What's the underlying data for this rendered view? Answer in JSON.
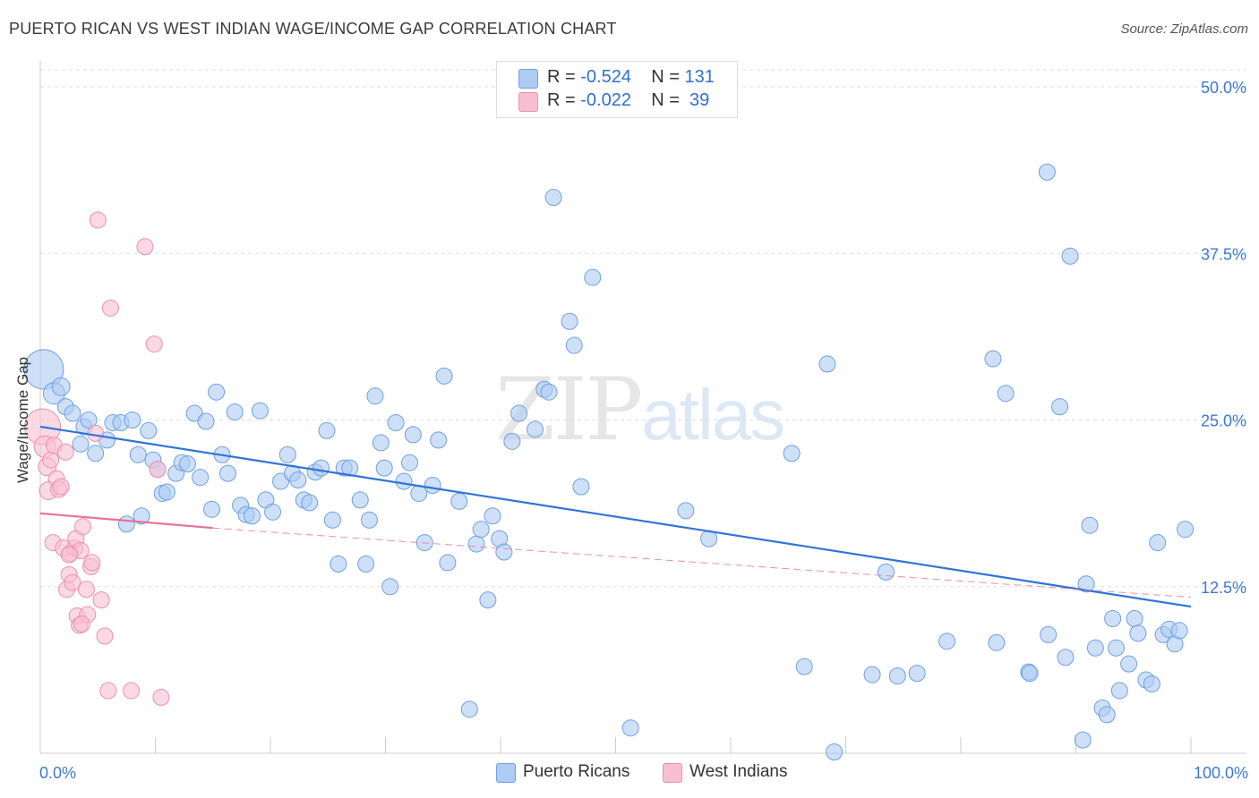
{
  "title": "PUERTO RICAN VS WEST INDIAN WAGE/INCOME GAP CORRELATION CHART",
  "source": "Source: ZipAtlas.com",
  "watermark": {
    "zip": "ZIP",
    "atlas": "atlas"
  },
  "colors": {
    "blue_fill": "#aecbf3",
    "blue_stroke": "#6f9fe0",
    "blue_line": "#2f74d6",
    "pink_fill": "#f8bfd2",
    "pink_stroke": "#ec8fae",
    "pink_line": "#e8719a",
    "grid": "#dddddd",
    "axis_label": "#3b78cf"
  },
  "legend_top": [
    {
      "r_label": "R = ",
      "r_value": "-0.524",
      "n_label": "N = ",
      "n_value": "131",
      "series": "Puerto Ricans"
    },
    {
      "r_label": "R = ",
      "r_value": "-0.022",
      "n_label": "N = ",
      "n_value": " 39",
      "series": "West Indians"
    }
  ],
  "legend_bottom": [
    "Puerto Ricans",
    "West Indians"
  ],
  "chart_data": {
    "type": "scatter",
    "title": "PUERTO RICAN VS WEST INDIAN WAGE/INCOME GAP CORRELATION CHART",
    "xlabel": "",
    "ylabel": "Wage/Income Gap",
    "xlim": [
      0,
      100
    ],
    "ylim": [
      0,
      50
    ],
    "x_tick_labels": [
      "0.0%",
      "100.0%"
    ],
    "y_ticks": [
      12.5,
      25.0,
      37.5,
      50.0
    ],
    "y_tick_labels": [
      "12.5%",
      "25.0%",
      "37.5%",
      "50.0%"
    ],
    "grid": true,
    "legend_position": "top-center",
    "series": [
      {
        "name": "Puerto Ricans",
        "R": -0.524,
        "N": 131,
        "trend": {
          "x": [
            0,
            100
          ],
          "y": [
            24.5,
            11.0
          ],
          "style": "solid"
        },
        "points": [
          [
            0.3,
            28.8,
            22
          ],
          [
            1.2,
            27.0,
            12
          ],
          [
            1.8,
            27.5,
            10
          ],
          [
            2.2,
            26.0,
            9
          ],
          [
            2.8,
            25.5,
            9
          ],
          [
            3.5,
            23.2,
            9
          ],
          [
            3.8,
            24.5,
            9
          ],
          [
            4.2,
            25.0,
            9
          ],
          [
            4.8,
            22.5,
            9
          ],
          [
            5.8,
            23.5,
            9
          ],
          [
            6.3,
            24.8,
            9
          ],
          [
            7.0,
            24.8,
            9
          ],
          [
            7.5,
            17.2,
            9
          ],
          [
            8.0,
            25.0,
            9
          ],
          [
            8.5,
            22.4,
            9
          ],
          [
            8.8,
            17.8,
            9
          ],
          [
            9.4,
            24.2,
            9
          ],
          [
            9.8,
            22.0,
            9
          ],
          [
            10.2,
            21.3,
            9
          ],
          [
            10.6,
            19.5,
            9
          ],
          [
            11.0,
            19.6,
            9
          ],
          [
            11.8,
            21.0,
            9
          ],
          [
            12.3,
            21.8,
            9
          ],
          [
            12.8,
            21.7,
            9
          ],
          [
            13.4,
            25.5,
            9
          ],
          [
            13.9,
            20.7,
            9
          ],
          [
            14.4,
            24.9,
            9
          ],
          [
            14.9,
            18.3,
            9
          ],
          [
            15.3,
            27.1,
            9
          ],
          [
            15.8,
            22.4,
            9
          ],
          [
            16.3,
            21.0,
            9
          ],
          [
            16.9,
            25.6,
            9
          ],
          [
            17.4,
            18.6,
            9
          ],
          [
            17.9,
            17.9,
            9
          ],
          [
            18.4,
            17.8,
            9
          ],
          [
            19.1,
            25.7,
            9
          ],
          [
            19.6,
            19.0,
            9
          ],
          [
            20.2,
            18.1,
            9
          ],
          [
            20.9,
            20.4,
            9
          ],
          [
            21.5,
            22.4,
            9
          ],
          [
            21.9,
            21.0,
            9
          ],
          [
            22.4,
            20.5,
            9
          ],
          [
            22.9,
            19.0,
            9
          ],
          [
            23.4,
            18.8,
            9
          ],
          [
            23.9,
            21.1,
            9
          ],
          [
            24.4,
            21.4,
            9
          ],
          [
            24.9,
            24.2,
            9
          ],
          [
            25.4,
            17.5,
            9
          ],
          [
            25.9,
            14.2,
            9
          ],
          [
            26.4,
            21.4,
            9
          ],
          [
            26.9,
            21.4,
            9
          ],
          [
            27.8,
            19.0,
            9
          ],
          [
            28.3,
            14.2,
            9
          ],
          [
            28.6,
            17.5,
            9
          ],
          [
            29.1,
            26.8,
            9
          ],
          [
            29.6,
            23.3,
            9
          ],
          [
            29.9,
            21.4,
            9
          ],
          [
            30.4,
            12.5,
            9
          ],
          [
            30.9,
            24.8,
            9
          ],
          [
            31.6,
            20.4,
            9
          ],
          [
            32.1,
            21.8,
            9
          ],
          [
            32.4,
            23.9,
            9
          ],
          [
            32.9,
            19.5,
            9
          ],
          [
            33.4,
            15.8,
            9
          ],
          [
            34.1,
            20.1,
            9
          ],
          [
            34.6,
            23.5,
            9
          ],
          [
            35.1,
            28.3,
            9
          ],
          [
            35.4,
            14.3,
            9
          ],
          [
            36.4,
            18.9,
            9
          ],
          [
            37.3,
            3.3,
            9
          ],
          [
            37.9,
            15.7,
            9
          ],
          [
            38.3,
            16.8,
            9
          ],
          [
            38.9,
            11.5,
            9
          ],
          [
            39.3,
            17.8,
            9
          ],
          [
            39.9,
            16.1,
            9
          ],
          [
            40.3,
            15.1,
            9
          ],
          [
            41.0,
            23.4,
            9
          ],
          [
            41.6,
            25.5,
            9
          ],
          [
            43.0,
            24.3,
            9
          ],
          [
            43.8,
            27.3,
            9
          ],
          [
            44.2,
            27.1,
            9
          ],
          [
            44.6,
            41.7,
            9
          ],
          [
            46.0,
            32.4,
            9
          ],
          [
            46.4,
            30.6,
            9
          ],
          [
            47.0,
            20.0,
            9
          ],
          [
            48.0,
            35.7,
            9
          ],
          [
            51.3,
            1.9,
            9
          ],
          [
            56.1,
            18.2,
            9
          ],
          [
            58.1,
            16.1,
            9
          ],
          [
            65.3,
            22.5,
            9
          ],
          [
            66.4,
            6.5,
            9
          ],
          [
            68.4,
            29.2,
            9
          ],
          [
            69.0,
            0.1,
            9
          ],
          [
            72.3,
            5.9,
            9
          ],
          [
            73.5,
            13.6,
            9
          ],
          [
            74.5,
            5.8,
            9
          ],
          [
            76.2,
            6.0,
            9
          ],
          [
            78.8,
            8.4,
            9
          ],
          [
            82.8,
            29.6,
            9
          ],
          [
            83.1,
            8.3,
            9
          ],
          [
            83.9,
            27.0,
            9
          ],
          [
            85.9,
            6.1,
            9
          ],
          [
            86.0,
            6.0,
            9
          ],
          [
            87.6,
            8.9,
            9
          ],
          [
            87.5,
            43.6,
            9
          ],
          [
            88.6,
            26.0,
            9
          ],
          [
            89.1,
            7.2,
            9
          ],
          [
            89.5,
            37.3,
            9
          ],
          [
            90.6,
            1.0,
            9
          ],
          [
            90.9,
            12.7,
            9
          ],
          [
            91.2,
            17.1,
            9
          ],
          [
            91.7,
            7.9,
            9
          ],
          [
            92.3,
            3.4,
            9
          ],
          [
            92.7,
            2.9,
            9
          ],
          [
            93.2,
            10.1,
            9
          ],
          [
            93.5,
            7.9,
            9
          ],
          [
            93.8,
            4.7,
            9
          ],
          [
            94.6,
            6.7,
            9
          ],
          [
            95.1,
            10.1,
            9
          ],
          [
            95.4,
            9.0,
            9
          ],
          [
            96.1,
            5.5,
            9
          ],
          [
            96.6,
            5.2,
            9
          ],
          [
            97.1,
            15.8,
            9
          ],
          [
            97.6,
            8.9,
            9
          ],
          [
            98.1,
            9.3,
            9
          ],
          [
            98.6,
            8.2,
            9
          ],
          [
            99.0,
            9.2,
            9
          ],
          [
            99.5,
            16.8,
            9
          ]
        ]
      },
      {
        "name": "West Indians",
        "R": -0.022,
        "N": 39,
        "trend": {
          "x": [
            0,
            15
          ],
          "y": [
            18.0,
            16.9
          ],
          "style": "solid",
          "extension": {
            "x": [
              15,
              100
            ],
            "y": [
              16.9,
              11.7
            ],
            "style": "dashed"
          }
        },
        "points": [
          [
            0.2,
            24.5,
            20
          ],
          [
            0.4,
            23.0,
            12
          ],
          [
            0.6,
            21.5,
            10
          ],
          [
            0.7,
            19.7,
            10
          ],
          [
            0.9,
            22.0,
            9
          ],
          [
            1.1,
            15.8,
            9
          ],
          [
            1.2,
            23.1,
            9
          ],
          [
            1.4,
            20.6,
            9
          ],
          [
            1.6,
            19.8,
            9
          ],
          [
            1.8,
            20.0,
            9
          ],
          [
            2.0,
            15.4,
            9
          ],
          [
            2.2,
            22.6,
            9
          ],
          [
            2.3,
            12.3,
            9
          ],
          [
            2.5,
            13.4,
            9
          ],
          [
            2.6,
            15.0,
            9
          ],
          [
            2.8,
            12.8,
            9
          ],
          [
            3.0,
            15.4,
            9
          ],
          [
            3.1,
            16.1,
            9
          ],
          [
            3.2,
            10.3,
            9
          ],
          [
            3.4,
            9.6,
            9
          ],
          [
            3.5,
            15.2,
            9
          ],
          [
            3.7,
            17.0,
            9
          ],
          [
            4.0,
            12.3,
            9
          ],
          [
            4.1,
            10.4,
            9
          ],
          [
            4.4,
            14.0,
            9
          ],
          [
            4.5,
            14.3,
            9
          ],
          [
            4.8,
            24.0,
            9
          ],
          [
            5.0,
            40.0,
            9
          ],
          [
            5.3,
            11.5,
            9
          ],
          [
            5.6,
            8.8,
            9
          ],
          [
            5.9,
            4.7,
            9
          ],
          [
            6.1,
            33.4,
            9
          ],
          [
            7.9,
            4.7,
            9
          ],
          [
            9.1,
            38.0,
            9
          ],
          [
            9.9,
            30.7,
            9
          ],
          [
            10.2,
            21.3,
            9
          ],
          [
            10.5,
            4.2,
            9
          ],
          [
            3.6,
            9.7,
            9
          ],
          [
            2.5,
            14.9,
            9
          ]
        ]
      }
    ]
  }
}
